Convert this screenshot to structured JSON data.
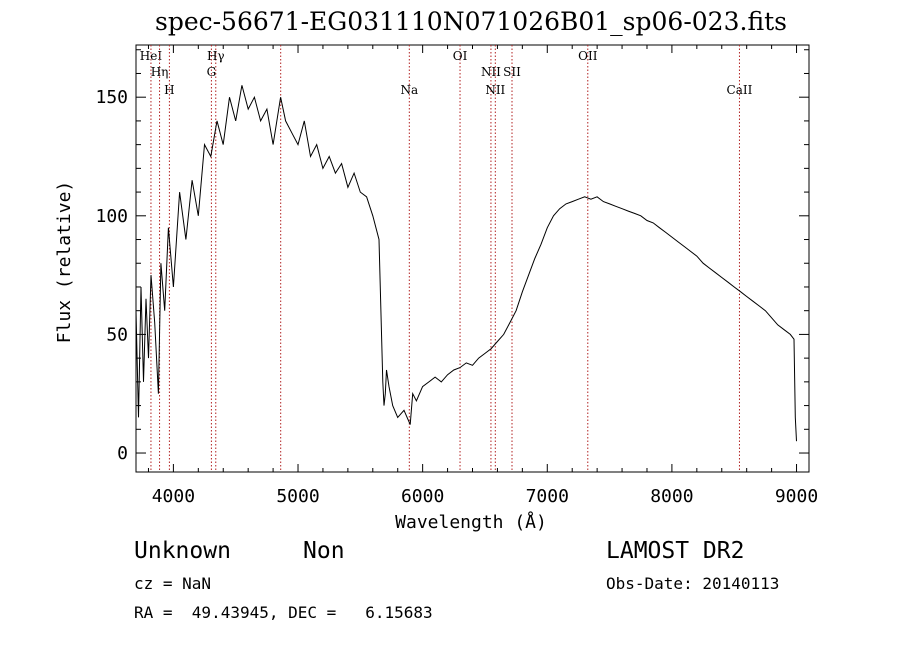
{
  "chart_data": {
    "type": "line",
    "title": "spec-56671-EG031110N071026B01_sp06-023.fits",
    "xlabel": "Wavelength (Å)",
    "ylabel": "Flux (relative)",
    "xlim": [
      3700,
      9100
    ],
    "ylim": [
      -8,
      172
    ],
    "x_ticks": [
      4000,
      5000,
      6000,
      7000,
      8000,
      9000
    ],
    "x_tick_labels": [
      "4000",
      "5000",
      "6000",
      "7000",
      "8000",
      "9000"
    ],
    "y_ticks": [
      0,
      50,
      100,
      150
    ],
    "y_tick_labels": [
      "0",
      "50",
      "100",
      "150"
    ],
    "grid": false,
    "line_color": "#000000",
    "series": [
      {
        "x": [
          3700,
          3720,
          3740,
          3760,
          3780,
          3800,
          3820,
          3850,
          3880,
          3900,
          3930,
          3960,
          4000,
          4050,
          4100,
          4150,
          4200,
          4250,
          4300,
          4350,
          4400,
          4450,
          4500,
          4550,
          4600,
          4650,
          4700,
          4750,
          4800,
          4860,
          4900,
          4950,
          5000,
          5050,
          5100,
          5150,
          5200,
          5250,
          5300,
          5350,
          5400,
          5450,
          5500,
          5550,
          5600,
          5650,
          5680,
          5690,
          5700,
          5710,
          5730,
          5760,
          5800,
          5850,
          5900,
          5920,
          5950,
          6000,
          6050,
          6100,
          6150,
          6200,
          6250,
          6300,
          6350,
          6400,
          6450,
          6500,
          6550,
          6600,
          6650,
          6700,
          6750,
          6800,
          6850,
          6900,
          6950,
          7000,
          7050,
          7100,
          7150,
          7200,
          7250,
          7300,
          7350,
          7400,
          7450,
          7500,
          7550,
          7600,
          7650,
          7700,
          7750,
          7800,
          7850,
          7900,
          7950,
          8000,
          8050,
          8100,
          8150,
          8200,
          8250,
          8300,
          8350,
          8400,
          8450,
          8500,
          8550,
          8600,
          8650,
          8700,
          8750,
          8800,
          8850,
          8900,
          8950,
          8980,
          8990,
          9000
        ],
        "y": [
          60,
          15,
          70,
          30,
          65,
          40,
          75,
          55,
          25,
          80,
          60,
          95,
          70,
          110,
          90,
          115,
          100,
          130,
          125,
          140,
          130,
          150,
          140,
          155,
          145,
          150,
          140,
          145,
          130,
          150,
          140,
          135,
          130,
          140,
          125,
          130,
          120,
          125,
          118,
          122,
          112,
          118,
          110,
          108,
          100,
          90,
          30,
          20,
          25,
          35,
          28,
          20,
          15,
          18,
          12,
          25,
          22,
          28,
          30,
          32,
          30,
          33,
          35,
          36,
          38,
          37,
          40,
          42,
          44,
          47,
          50,
          55,
          60,
          68,
          75,
          82,
          88,
          95,
          100,
          103,
          105,
          106,
          107,
          108,
          107,
          108,
          106,
          105,
          104,
          103,
          102,
          101,
          100,
          98,
          97,
          95,
          93,
          91,
          89,
          87,
          85,
          83,
          80,
          78,
          76,
          74,
          72,
          70,
          68,
          66,
          64,
          62,
          60,
          57,
          54,
          52,
          50,
          48,
          15,
          5
        ]
      }
    ],
    "lines": [
      {
        "label": "HeI",
        "x": 3820
      },
      {
        "label": "Hη",
        "x": 3889
      },
      {
        "label": "H",
        "x": 3968
      },
      {
        "label": "Hγ",
        "x": 4340
      },
      {
        "label": "G",
        "x": 4305
      },
      {
        "label": "",
        "x": 4861
      },
      {
        "label": "Na",
        "x": 5893
      },
      {
        "label": "OI",
        "x": 6300
      },
      {
        "label": "NII",
        "x": 6548
      },
      {
        "label": "NII",
        "x": 6583
      },
      {
        "label": "OII",
        "x": 7325
      },
      {
        "label": "SII",
        "x": 6717
      },
      {
        "label": "CaII",
        "x": 8542
      }
    ]
  },
  "info": {
    "classification": "Unknown",
    "subclass": "Non",
    "cz": "cz = NaN",
    "coords": "RA =  49.43945, DEC =   6.15683",
    "survey": "LAMOST DR2",
    "obs_date": "Obs-Date: 20140113"
  }
}
